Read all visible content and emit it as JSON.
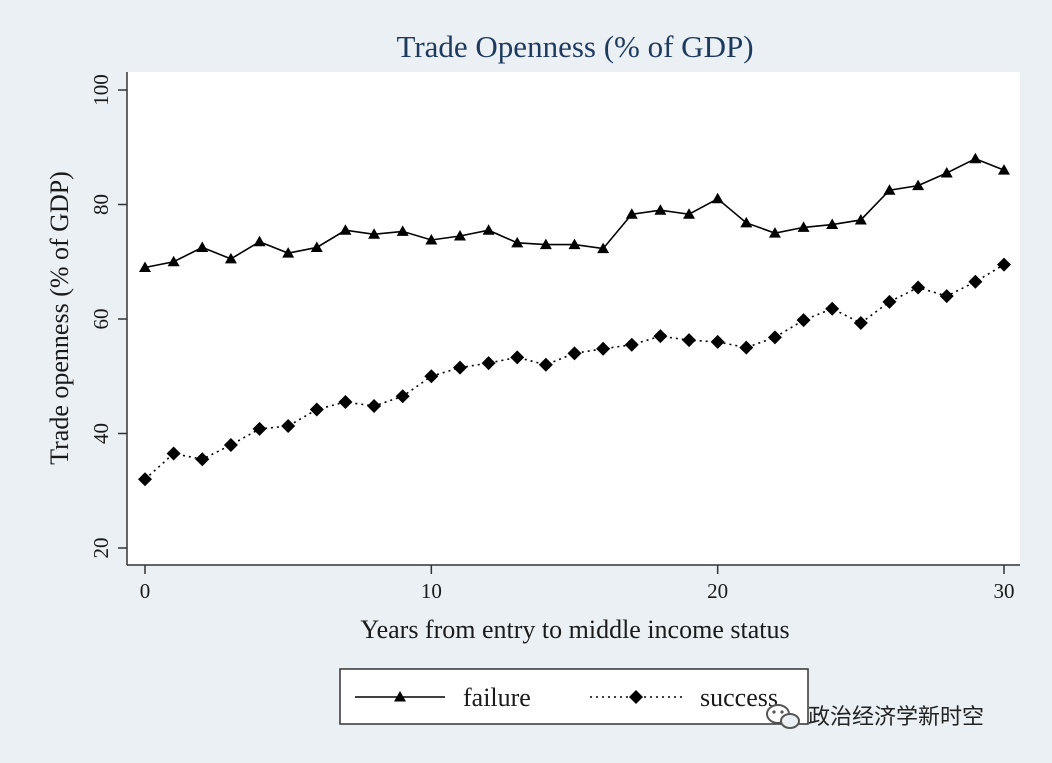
{
  "chart_data": {
    "type": "line",
    "title": "Trade Openness (% of GDP)",
    "xlabel": "Years from entry to middle income status",
    "ylabel": "Trade openness (% of GDP)",
    "xlim": [
      0,
      30
    ],
    "ylim": [
      20,
      100
    ],
    "x_ticks": [
      0,
      10,
      20,
      30
    ],
    "y_ticks": [
      20,
      40,
      60,
      80,
      100
    ],
    "grid": false,
    "legend_position": "bottom",
    "x": [
      0,
      1,
      2,
      3,
      4,
      5,
      6,
      7,
      8,
      9,
      10,
      11,
      12,
      13,
      14,
      15,
      16,
      17,
      18,
      19,
      20,
      21,
      22,
      23,
      24,
      25,
      26,
      27,
      28,
      29,
      30
    ],
    "series": [
      {
        "name": "failure",
        "marker": "triangle",
        "line_style": "solid",
        "values": [
          69,
          70,
          72.5,
          70.5,
          73.5,
          71.5,
          72.5,
          75.5,
          74.8,
          75.3,
          73.8,
          74.5,
          75.5,
          73.3,
          73,
          73,
          72.3,
          78.3,
          79,
          78.3,
          81,
          76.8,
          75,
          76,
          76.5,
          77.3,
          82.5,
          83.3,
          85.5,
          88,
          86
        ]
      },
      {
        "name": "success",
        "marker": "diamond",
        "line_style": "dotted",
        "values": [
          32,
          36.5,
          35.5,
          38,
          40.8,
          41.3,
          44.2,
          45.5,
          44.8,
          46.5,
          50,
          51.5,
          52.3,
          53.3,
          52,
          54,
          54.8,
          55.5,
          57,
          56.3,
          56,
          55,
          56.8,
          59.8,
          61.8,
          59.3,
          63,
          65.5,
          64,
          66.5,
          69.5
        ]
      }
    ]
  },
  "watermark": {
    "text": "政治经济学新时空",
    "icon": "wechat-icon"
  }
}
